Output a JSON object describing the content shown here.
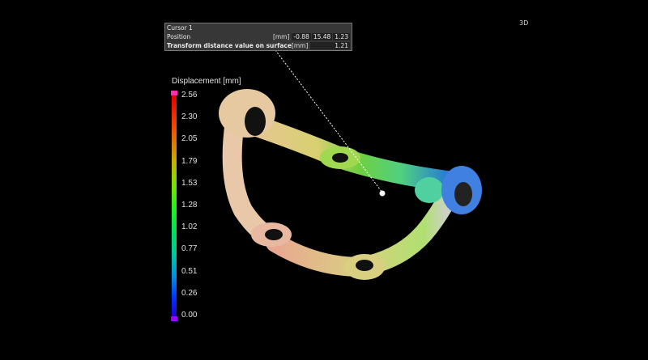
{
  "view_mode": "3D",
  "cursor_panel": {
    "title": "Cursor 1",
    "position": {
      "label": "Position",
      "unit": "[mm]",
      "x": "-0.88",
      "y": "15.48",
      "z": "1.23"
    },
    "distance": {
      "label": "Transform distance value on surface",
      "unit": "[mm]",
      "value": "1.21"
    }
  },
  "legend": {
    "title": "Displacement [mm]",
    "ticks": [
      "2.56",
      "2.30",
      "2.05",
      "1.79",
      "1.53",
      "1.28",
      "1.02",
      "0.77",
      "0.51",
      "0.26",
      "0.00"
    ],
    "colors": {
      "max_cap": "#ff30b0",
      "min_cap": "#a000ff",
      "high": "#e00000",
      "mid": "#20f020",
      "low": "#0030ff"
    }
  }
}
